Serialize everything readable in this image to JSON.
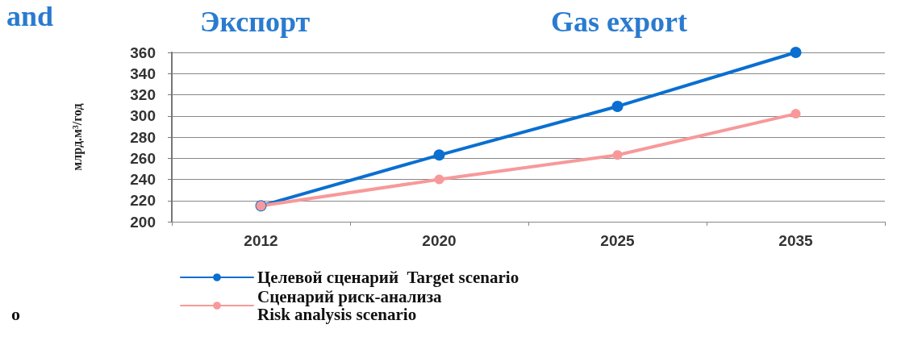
{
  "chart_data": {
    "type": "line",
    "title": "Экспорт",
    "subtitle": "Gas export",
    "ylabel": "млрд.м³/год",
    "annotations": [
      "and",
      "o"
    ],
    "categories": [
      "2012",
      "2020",
      "2025",
      "2035"
    ],
    "series": [
      {
        "name": "Целевой сценарий  Target scenario",
        "color": "#0a6fd0",
        "values": [
          215,
          263,
          309,
          360
        ]
      },
      {
        "name": "Сценарий риск-анализа\nRisk analysis scenario",
        "color": "#f7999a",
        "values": [
          215,
          240,
          263,
          302
        ]
      }
    ],
    "ylim": [
      200,
      360
    ],
    "yticks": [
      200,
      220,
      240,
      260,
      280,
      300,
      320,
      340,
      360
    ],
    "grid": "y",
    "legend": "bottom",
    "marker": "circle",
    "line_style": "solid"
  }
}
